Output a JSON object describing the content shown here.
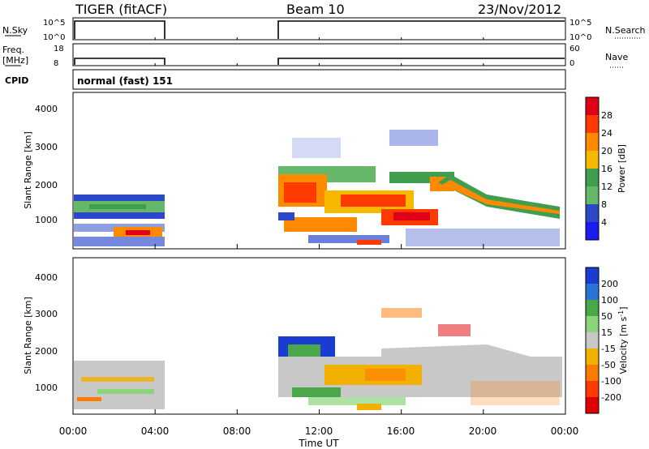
{
  "header": {
    "title": "TIGER (fitACF)",
    "beam": "Beam 10",
    "date": "23/Nov/2012"
  },
  "labels": {
    "nsky": "N.Sky",
    "freq": "Freq.",
    "freq_unit": "[MHz]",
    "cpid": "CPID",
    "nsearch": "N.Search",
    "nave": "Nave",
    "cpid_value": "normal (fast) 151",
    "nsky_ticks": [
      "10^5",
      "10^0"
    ],
    "freq_ticks": [
      "18",
      "8"
    ],
    "nave_ticks": [
      "60",
      "0"
    ],
    "nsearch_ticks": [
      "10^5",
      "10^0"
    ]
  },
  "chart_data": [
    {
      "type": "line",
      "panel": "noise / frequency / nave",
      "x_range_hours": [
        0,
        24
      ],
      "segments_hours": [
        [
          0.0,
          4.5
        ],
        [
          10.0,
          24.0
        ]
      ],
      "nsky_level": "10^5",
      "freq_mhz": 8,
      "nave_range": [
        0,
        60
      ]
    },
    {
      "type": "heatmap",
      "panel": "power",
      "ylabel": "Slant Range [km]",
      "ylim": [
        0,
        4500
      ],
      "yticks": [
        "4000",
        "3000",
        "2000",
        "1000"
      ],
      "xlim": [
        0,
        24
      ],
      "colorbar_label": "Power [dB]",
      "colorbar_ticks": [
        "28",
        "24",
        "20",
        "16",
        "12",
        "8",
        "4"
      ],
      "colorbar_colors": [
        "#e0001a",
        "#ff3a00",
        "#ff8a00",
        "#f7b800",
        "#3f9f4f",
        "#65b86a",
        "#2a48c8",
        "#1c1cf0"
      ]
    },
    {
      "type": "heatmap",
      "panel": "velocity",
      "ylabel": "Slant Range [km]",
      "ylim": [
        0,
        4500
      ],
      "yticks": [
        "4000",
        "3000",
        "2000",
        "1000"
      ],
      "xlim": [
        0,
        24
      ],
      "xlabel": "Time UT",
      "xticks": [
        "00:00",
        "04:00",
        "08:00",
        "12:00",
        "16:00",
        "20:00",
        "00:00"
      ],
      "colorbar_label": "Velocity [m s",
      "colorbar_label_sup": "-1",
      "colorbar_label_end": "]",
      "colorbar_ticks": [
        "200",
        "100",
        "50",
        "15",
        "-15",
        "-50",
        "-100",
        "-200"
      ],
      "colorbar_colors": [
        "#1b3cd0",
        "#2a74d6",
        "#4aa84a",
        "#8bd47a",
        "#c8c8c8",
        "#f2b100",
        "#ff7a00",
        "#ff3a00",
        "#e00000"
      ]
    }
  ]
}
